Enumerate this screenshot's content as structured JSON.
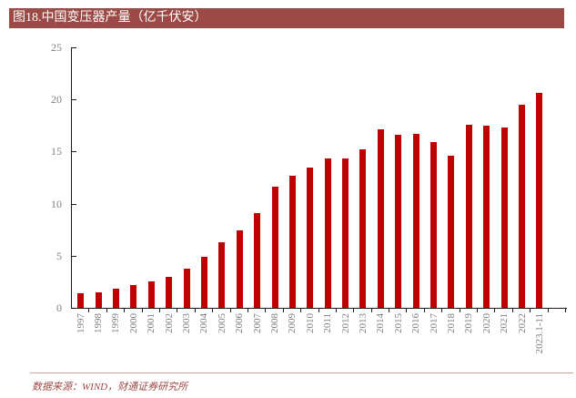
{
  "figure": {
    "title": "图18.中国变压器产量（亿千伏安）",
    "source_note": "数据来源：WIND，财通证券研究所"
  },
  "colors": {
    "title_bar_bg": "#9C4A45",
    "title_text": "#FFFFFF",
    "bar": "#C00000",
    "axis_line": "#1A1A1A",
    "tick_label": "#7F7F7F",
    "divider": "#D4A09C",
    "source_text": "#9C4A45"
  },
  "chart_data": {
    "type": "bar",
    "title": "中国变压器产量（亿千伏安）",
    "categories": [
      "1997",
      "1998",
      "1999",
      "2000",
      "2001",
      "2002",
      "2003",
      "2004",
      "2005",
      "2006",
      "2007",
      "2008",
      "2009",
      "2010",
      "2011",
      "2012",
      "2013",
      "2014",
      "2015",
      "2016",
      "2017",
      "2018",
      "2019",
      "2020",
      "2021",
      "2022",
      "2023.1-11"
    ],
    "values": [
      1.4,
      1.5,
      1.8,
      2.2,
      2.5,
      3.0,
      3.8,
      4.9,
      6.3,
      7.4,
      9.1,
      11.6,
      12.7,
      13.5,
      14.3,
      14.3,
      15.2,
      17.1,
      16.6,
      16.7,
      15.9,
      14.6,
      17.6,
      17.5,
      17.3,
      19.5,
      20.6
    ],
    "xlabel": "",
    "ylabel": "",
    "ylim": [
      0,
      25
    ],
    "yticks": [
      0,
      5,
      10,
      15,
      20,
      25
    ],
    "grid": false,
    "legend": "none",
    "bar_color": "#C00000"
  }
}
